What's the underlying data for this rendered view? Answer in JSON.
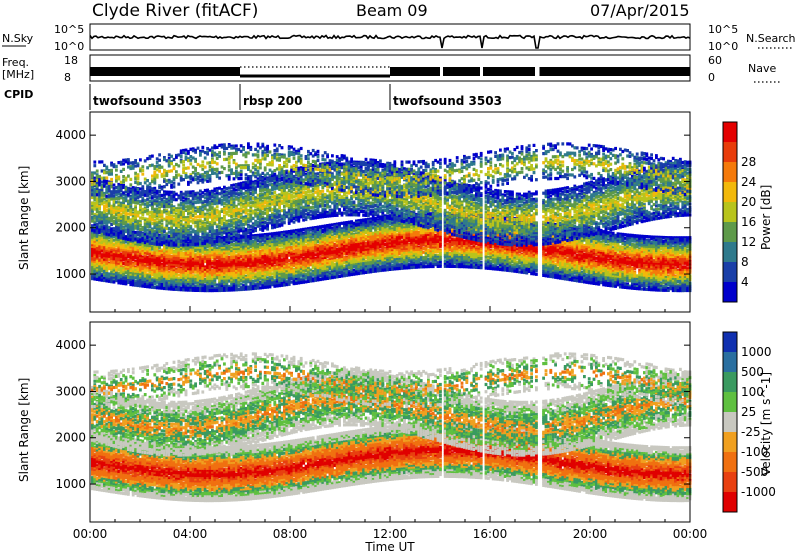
{
  "header": {
    "station": "Clyde River (fitACF)",
    "beam": "Beam 09",
    "date": "07/Apr/2015"
  },
  "noise_panel": {
    "left_label": "N.Sky",
    "right_label": "N.Search",
    "left_ticks": [
      "10^5",
      "10^0"
    ],
    "right_ticks": [
      "10^5",
      "10^0"
    ]
  },
  "freq_panel": {
    "left_label_line1": "Freq.",
    "left_label_line2": "[MHz]",
    "left_ticks": [
      "18",
      "8"
    ],
    "right_ticks": [
      "60",
      "0"
    ],
    "right_label": "Nave"
  },
  "cpid_panel": {
    "label": "CPID",
    "segments": [
      {
        "name": "twofsound 3503",
        "start_hour": 0,
        "end_hour": 6
      },
      {
        "name": "rbsp 200",
        "start_hour": 6,
        "end_hour": 12
      },
      {
        "name": "twofsound 3503",
        "start_hour": 12,
        "end_hour": 24
      }
    ]
  },
  "chart_data": [
    {
      "type": "heatmap",
      "title": "Power",
      "xlabel": "",
      "ylabel": "Slant Range [km]",
      "xlim": [
        0,
        24
      ],
      "ylim": [
        180,
        4500
      ],
      "yticks": [
        1000,
        2000,
        3000,
        4000
      ],
      "colorbar": {
        "label": "Power [dB]",
        "range": [
          0,
          32
        ],
        "ticks": [
          "4",
          "8",
          "12",
          "16",
          "20",
          "24",
          "28"
        ],
        "colors": [
          "#0000cc",
          "#1a3fa8",
          "#2f7a8c",
          "#5e9a4a",
          "#b8c41c",
          "#f2b80a",
          "#f57a0a",
          "#e83c0a",
          "#e40000"
        ]
      },
      "data_gaps_hours": [
        [
          14.0,
          14.1
        ],
        [
          15.6,
          15.7
        ],
        [
          17.8,
          18.0
        ]
      ]
    },
    {
      "type": "heatmap",
      "title": "Velocity",
      "xlabel": "Time UT",
      "ylabel": "Slant Range [km]",
      "xlim": [
        0,
        24
      ],
      "ylim": [
        180,
        4500
      ],
      "yticks": [
        1000,
        2000,
        3000,
        4000
      ],
      "xticks": [
        "00:00",
        "04:00",
        "08:00",
        "12:00",
        "16:00",
        "20:00",
        "00:00"
      ],
      "colorbar": {
        "label": "Velocity [m s^-1]",
        "ticks": [
          "1000",
          "500",
          "100",
          "25",
          "-25",
          "-100",
          "-500",
          "-1000"
        ],
        "colors": [
          "#1030b0",
          "#2a6fa0",
          "#3a9a60",
          "#5fc040",
          "#c8c8c0",
          "#f0a020",
          "#f07010",
          "#e84010",
          "#e00000"
        ]
      },
      "data_gaps_hours": [
        [
          14.0,
          14.1
        ],
        [
          15.6,
          15.7
        ],
        [
          17.8,
          18.0
        ]
      ]
    }
  ]
}
